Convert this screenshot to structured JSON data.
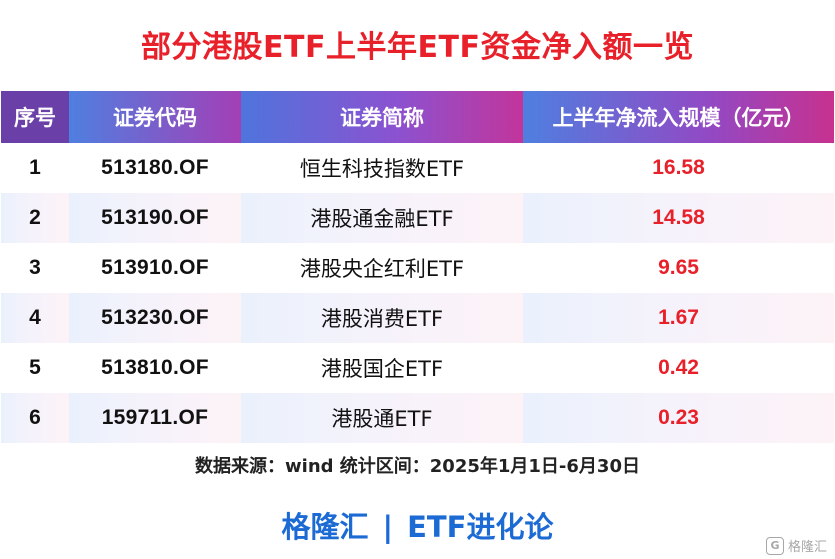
{
  "title": "部分港股ETF上半年ETF资金净入额一览",
  "table": {
    "headers": {
      "seq": "序号",
      "code": "证券代码",
      "name": "证券简称",
      "flow": "上半年净流入规模（亿元）"
    },
    "rows": [
      {
        "seq": "1",
        "code": "513180.OF",
        "name": "恒生科技指数ETF",
        "flow": "16.58"
      },
      {
        "seq": "2",
        "code": "513190.OF",
        "name": "港股通金融ETF",
        "flow": "14.58"
      },
      {
        "seq": "3",
        "code": "513910.OF",
        "name": "港股央企红利ETF",
        "flow": "9.65"
      },
      {
        "seq": "4",
        "code": "513230.OF",
        "name": "港股消费ETF",
        "flow": "1.67"
      },
      {
        "seq": "5",
        "code": "513810.OF",
        "name": "港股国企ETF",
        "flow": "0.42"
      },
      {
        "seq": "6",
        "code": "159711.OF",
        "name": "港股通ETF",
        "flow": "0.23"
      }
    ]
  },
  "source": "数据来源：wind 统计区间：2025年1月1日-6月30日",
  "brand": {
    "left": "格隆汇",
    "separator": "|",
    "right": "ETF进化论"
  },
  "watermark": {
    "icon": "G",
    "text": "格隆汇"
  },
  "colors": {
    "title": "#e8202a",
    "value": "#e8202a",
    "brand": "#1c6bd4",
    "header_start": "#4f7fe0",
    "header_end": "#c7318f"
  }
}
